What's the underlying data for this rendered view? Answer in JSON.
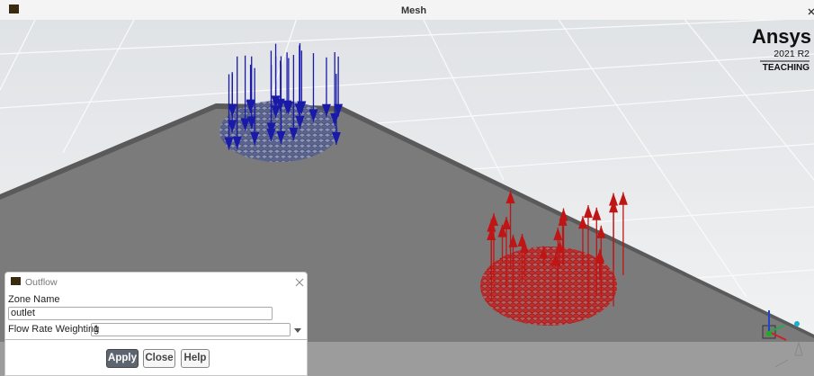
{
  "title_bar": {
    "title": "Mesh"
  },
  "logo": {
    "brand": "Ansys",
    "version": "2021 R2",
    "edition": "TEACHING"
  },
  "dialog": {
    "title": "Outflow",
    "fields": [
      {
        "label": "Zone Name",
        "value": "outlet"
      },
      {
        "label": "Flow Rate Weighting",
        "value": "1"
      }
    ],
    "buttons": [
      "Apply",
      "Close",
      "Help"
    ]
  }
}
